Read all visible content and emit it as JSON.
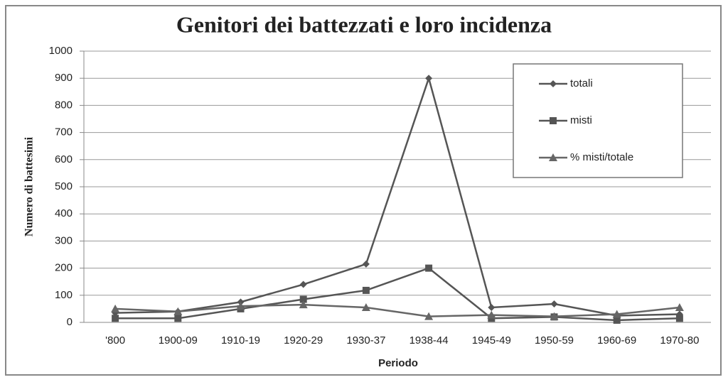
{
  "chart_data": {
    "type": "line",
    "title": "Genitori dei battezzati e loro incidenza",
    "x_label": "Periodo",
    "y_label": "Numero di battesimi",
    "categories": [
      "'800",
      "1900-09",
      "1910-19",
      "1920-29",
      "1930-37",
      "1938-44",
      "1945-49",
      "1950-59",
      "1960-69",
      "1970-80"
    ],
    "series": [
      {
        "name": "totali",
        "color": "#555555",
        "marker": "diamond",
        "values": [
          35,
          40,
          75,
          140,
          215,
          900,
          55,
          68,
          25,
          30
        ]
      },
      {
        "name": "misti",
        "color": "#555555",
        "marker": "square",
        "values": [
          15,
          15,
          50,
          85,
          118,
          200,
          15,
          20,
          8,
          15
        ]
      },
      {
        "name": "% misti/totale",
        "color": "#666666",
        "marker": "triangle",
        "values": [
          50,
          40,
          60,
          65,
          55,
          22,
          27,
          22,
          30,
          55
        ]
      }
    ],
    "ylim": [
      0,
      1000
    ],
    "yticks": [
      0,
      100,
      200,
      300,
      400,
      500,
      600,
      700,
      800,
      900,
      1000
    ],
    "grid": true,
    "legend": "top-right"
  }
}
